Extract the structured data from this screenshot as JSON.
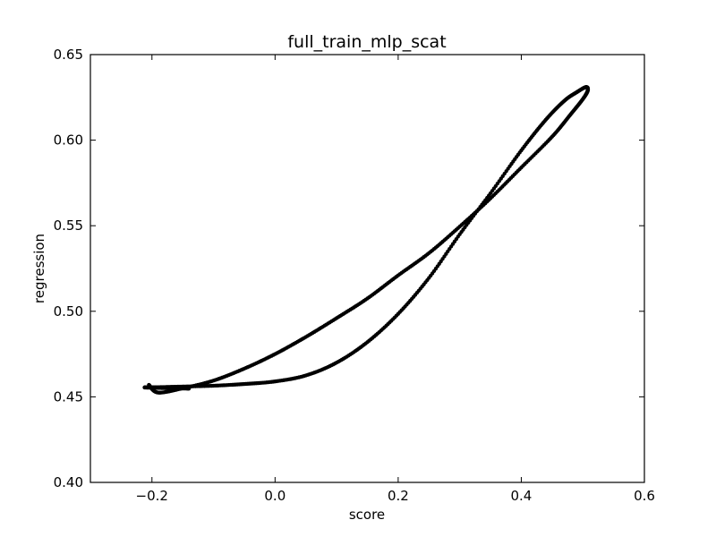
{
  "chart_data": {
    "type": "scatter",
    "title": "full_train_mlp_scat",
    "xlabel": "score",
    "ylabel": "regression",
    "xlim": [
      -0.3,
      0.6
    ],
    "ylim": [
      0.4,
      0.65
    ],
    "x_ticks": [
      "−0.2",
      "0.0",
      "0.2",
      "0.4",
      "0.6"
    ],
    "x_tick_values": [
      -0.2,
      0.0,
      0.2,
      0.4,
      0.6
    ],
    "y_ticks": [
      "0.40",
      "0.45",
      "0.50",
      "0.55",
      "0.60",
      "0.65"
    ],
    "y_tick_values": [
      0.4,
      0.45,
      0.5,
      0.55,
      0.6,
      0.65
    ],
    "grid": false,
    "marker_color": "#000000",
    "series": [
      {
        "points": [
          [
            -0.14,
            0.4548
          ],
          [
            -0.18,
            0.4551
          ],
          [
            -0.212,
            0.4555
          ],
          [
            -0.18,
            0.4557
          ],
          [
            -0.15,
            0.456
          ],
          [
            -0.1,
            0.4565
          ],
          [
            -0.05,
            0.4575
          ],
          [
            0.0,
            0.459
          ],
          [
            0.05,
            0.4625
          ],
          [
            0.1,
            0.47
          ],
          [
            0.15,
            0.482
          ],
          [
            0.2,
            0.4985
          ],
          [
            0.25,
            0.5195
          ],
          [
            0.3,
            0.545
          ],
          [
            0.35,
            0.569
          ],
          [
            0.4,
            0.594
          ],
          [
            0.44,
            0.612
          ],
          [
            0.47,
            0.623
          ],
          [
            0.49,
            0.628
          ],
          [
            0.505,
            0.631
          ],
          [
            0.508,
            0.629
          ],
          [
            0.5,
            0.624
          ],
          [
            0.48,
            0.615
          ],
          [
            0.45,
            0.602
          ],
          [
            0.4,
            0.584
          ],
          [
            0.35,
            0.566
          ],
          [
            0.3,
            0.5495
          ],
          [
            0.25,
            0.534
          ],
          [
            0.2,
            0.521
          ],
          [
            0.15,
            0.5075
          ],
          [
            0.1,
            0.496
          ],
          [
            0.05,
            0.485
          ],
          [
            0.0,
            0.475
          ],
          [
            -0.05,
            0.4665
          ],
          [
            -0.1,
            0.4595
          ],
          [
            -0.15,
            0.455
          ],
          [
            -0.19,
            0.4525
          ],
          [
            -0.205,
            0.457
          ]
        ]
      }
    ]
  }
}
